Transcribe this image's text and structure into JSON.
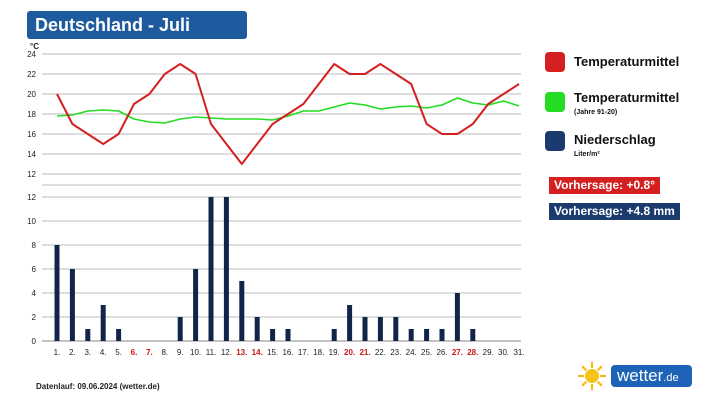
{
  "title": "Deutschland - Juli",
  "legend": {
    "temp_label": "Temperaturmittel",
    "normal_label": "Temperaturmittel",
    "normal_sub": "(Jahre 91-20)",
    "precip_label": "Niederschlag",
    "precip_sub": "Liter/m²"
  },
  "forecasts": {
    "temp": "Vorhersage: +0.8°",
    "precip": "Vorhersage: +4.8 mm"
  },
  "footer": "Datenlauf: 09.06.2024 (wetter.de)",
  "brand": {
    "name": "wetter",
    "tld": ".de",
    "icon": "sun-icon"
  },
  "colors": {
    "temp": "#d42020",
    "normal": "#22dd22",
    "precip": "#13244a",
    "precip_swatch": "#1b3a6e",
    "weekend": "#c81818",
    "title_bg": "#1e5a9e",
    "forecast_precip_bg": "#1b3a6e"
  },
  "chart_data": {
    "type": "line+bar",
    "categories": [
      "1.",
      "2.",
      "3.",
      "4.",
      "5.",
      "6.",
      "7.",
      "8.",
      "9.",
      "10.",
      "11.",
      "12.",
      "13.",
      "14.",
      "15.",
      "16.",
      "17.",
      "18.",
      "19.",
      "20.",
      "21.",
      "22.",
      "23.",
      "24.",
      "25.",
      "26.",
      "27.",
      "28.",
      "29.",
      "30.",
      "31."
    ],
    "weekend_days": [
      6,
      7,
      13,
      14,
      20,
      21,
      27,
      28
    ],
    "temperature": {
      "unit": "°C",
      "ylim": [
        12,
        24
      ],
      "ticks": [
        12,
        14,
        16,
        18,
        20,
        22,
        24
      ],
      "series": [
        {
          "name": "Temperaturmittel",
          "values": [
            20,
            17,
            16,
            15,
            16,
            19,
            20,
            22,
            23,
            22,
            17,
            15,
            13,
            15,
            17,
            18,
            19,
            21,
            23,
            22,
            22,
            23,
            22,
            21,
            17,
            16,
            16,
            17,
            19,
            20,
            21
          ]
        },
        {
          "name": "Temperaturmittel (Jahre 91-20)",
          "values": [
            17.8,
            17.9,
            18.3,
            18.4,
            18.3,
            17.5,
            17.2,
            17.1,
            17.5,
            17.7,
            17.6,
            17.5,
            17.5,
            17.5,
            17.4,
            17.8,
            18.3,
            18.3,
            18.7,
            19.1,
            18.9,
            18.5,
            18.7,
            18.8,
            18.6,
            18.9,
            19.6,
            19.1,
            18.9,
            19.3,
            18.8
          ]
        }
      ]
    },
    "precipitation": {
      "unit": "Liter/m²",
      "ylim": [
        0,
        12
      ],
      "ticks": [
        0,
        2,
        4,
        6,
        8,
        10,
        12
      ],
      "series": [
        {
          "name": "Niederschlag",
          "values": [
            8,
            6,
            1,
            3,
            1,
            0,
            0,
            0,
            2,
            6,
            12,
            12,
            5,
            2,
            1,
            1,
            0,
            0,
            1,
            3,
            2,
            2,
            2,
            1,
            1,
            1,
            4,
            1,
            0,
            0,
            0
          ]
        }
      ]
    }
  }
}
